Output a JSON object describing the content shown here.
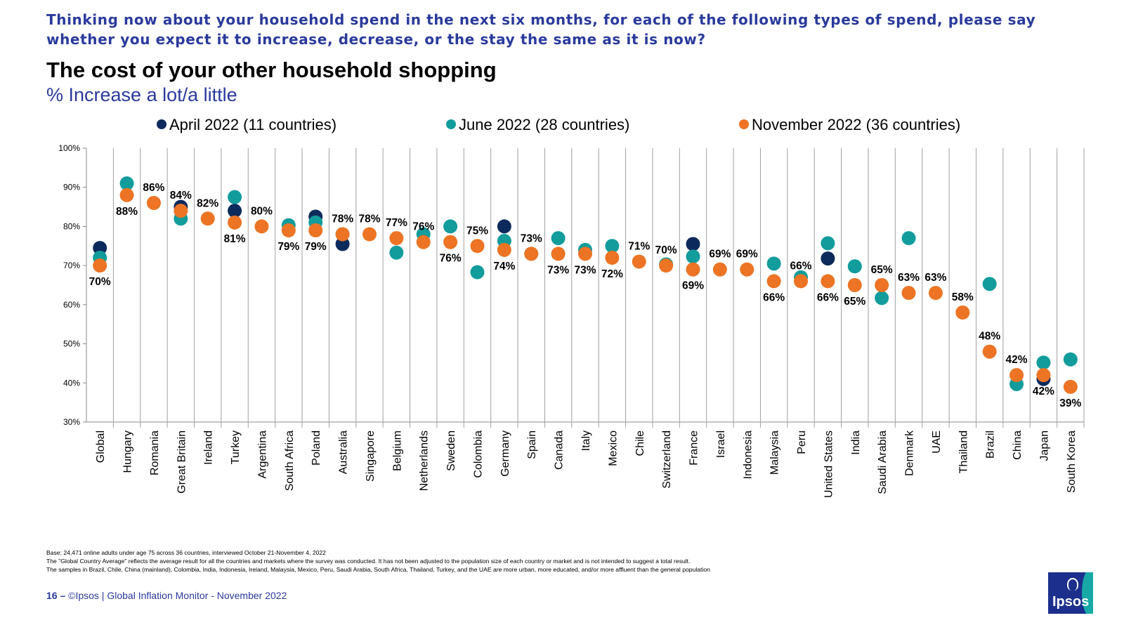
{
  "question": "Thinking now about your household spend in the next six months, for each of the following types of spend, please say whether you expect it to increase, decrease, or the stay the same as it is now?",
  "chart_data": {
    "type": "scatter",
    "title": "The cost of your other household shopping",
    "subtitle": "% Increase a lot/a little",
    "ylim": [
      30,
      100
    ],
    "yticks": [
      "30%",
      "40%",
      "50%",
      "60%",
      "70%",
      "80%",
      "90%",
      "100%"
    ],
    "ytick_values": [
      30,
      40,
      50,
      60,
      70,
      80,
      90,
      100
    ],
    "grid": "vertical lines between categories",
    "legend_position": "top",
    "categories": [
      "Global",
      "Hungary",
      "Romania",
      "Great Britain",
      "Ireland",
      "Turkey",
      "Argentina",
      "South Africa",
      "Poland",
      "Australia",
      "Singapore",
      "Belgium",
      "Netherlands",
      "Sweden",
      "Colombia",
      "Germany",
      "Spain",
      "Canada",
      "Italy",
      "Mexico",
      "Chile",
      "Switzerland",
      "France",
      "Israel",
      "Indonesia",
      "Malaysia",
      "Peru",
      "United States",
      "India",
      "Saudi Arabia",
      "Denmark",
      "UAE",
      "Thailand",
      "Brazil",
      "China",
      "Japan",
      "South Korea"
    ],
    "series": [
      {
        "name": "April 2022 (11 countries)",
        "color": "#0d2a5c",
        "values": [
          74.5,
          null,
          null,
          85,
          null,
          84,
          null,
          null,
          82.5,
          75.5,
          null,
          null,
          null,
          null,
          null,
          80,
          null,
          null,
          null,
          null,
          null,
          null,
          75.5,
          null,
          null,
          null,
          null,
          71.8,
          null,
          null,
          null,
          null,
          null,
          null,
          null,
          41,
          null
        ]
      },
      {
        "name": "June 2022 (28 countries)",
        "color": "#139c9c",
        "values": [
          72,
          91,
          null,
          82,
          null,
          87.5,
          null,
          80.3,
          81,
          78,
          null,
          73.3,
          78,
          80,
          68.3,
          76.3,
          73,
          77,
          74,
          75,
          null,
          70.3,
          72.3,
          null,
          null,
          70.5,
          67,
          75.7,
          69.8,
          61.7,
          77,
          null,
          null,
          65.3,
          39.7,
          45.2,
          46
        ]
      },
      {
        "name": "November 2022 (36 countries)",
        "color": "#ec7424",
        "values": [
          70,
          88,
          86,
          84,
          82,
          81,
          80,
          79,
          79,
          78,
          78,
          77,
          76,
          76,
          75,
          74,
          73,
          73,
          73,
          72,
          71,
          70,
          69,
          69,
          69,
          66,
          66,
          66,
          65,
          65,
          63,
          63,
          58,
          48,
          42,
          42,
          39
        ],
        "labels": [
          "70%",
          "88%",
          "86%",
          "84%",
          "82%",
          "81%",
          "80%",
          "79%",
          "79%",
          "78%",
          "78%",
          "77%",
          "76%",
          "76%",
          "75%",
          "74%",
          "73%",
          "73%",
          "73%",
          "72%",
          "71%",
          "70%",
          "69%",
          "69%",
          "69%",
          "66%",
          "66%",
          "66%",
          "65%",
          "65%",
          "63%",
          "63%",
          "58%",
          "48%",
          "42%",
          "42%",
          "39%"
        ],
        "label_side": [
          "below",
          "below",
          "above",
          "above",
          "above",
          "below",
          "above",
          "below",
          "below",
          "above",
          "above",
          "above",
          "above",
          "below",
          "above",
          "below",
          "above",
          "below",
          "below",
          "below",
          "above",
          "above",
          "below",
          "above",
          "above",
          "below",
          "above",
          "below",
          "below",
          "above",
          "above",
          "above",
          "above",
          "above",
          "above",
          "below",
          "below"
        ]
      }
    ]
  },
  "footnotes": [
    "Base: 24,471 online adults under age 75 across 36 countries, interviewed October 21-November 4, 2022",
    "The \"Global Country Average\" reflects the average result for all the countries and markets where the survey was conducted. It has not been adjusted to the population size of each country or market and is not intended to suggest a total result.",
    "The samples in Brazil, Chile, China (mainland), Colombia, India, Indonesia, Ireland, Malaysia, Mexico, Peru, Saudi Arabia, South Africa, Thailand, Turkey, and the UAE are more urban, more educated, and/or more affluent than the general population"
  ],
  "footer": {
    "page_number": "16 –",
    "text": "©Ipsos | Global Inflation Monitor - November 2022"
  },
  "logo": {
    "text": "Ipsos",
    "colors": {
      "background": "#1c2f8c",
      "accent": "#17a9a6"
    }
  }
}
